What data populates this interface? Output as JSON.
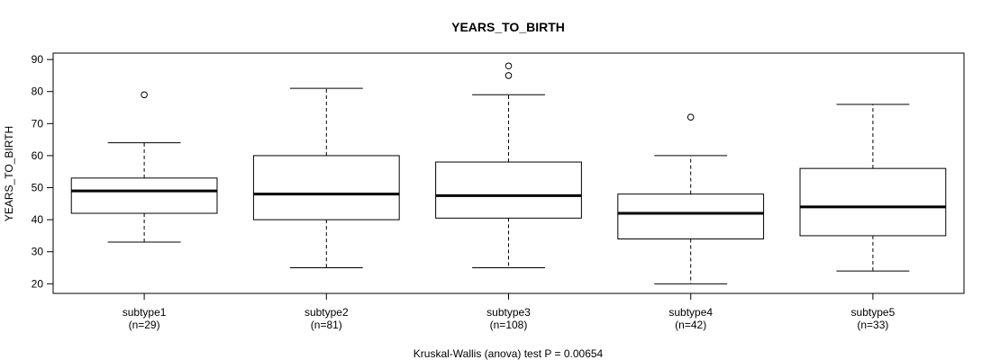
{
  "chart_data": {
    "type": "box",
    "title": "YEARS_TO_BIRTH",
    "ylabel": "YEARS_TO_BIRTH",
    "xlabel": "",
    "footnote": "Kruskal-Wallis (anova) test P = 0.00654",
    "ylim": [
      17,
      92
    ],
    "yticks": [
      20,
      30,
      40,
      50,
      60,
      70,
      80,
      90
    ],
    "grid": false,
    "categories": [
      "subtype1",
      "subtype2",
      "subtype3",
      "subtype4",
      "subtype5"
    ],
    "counts": [
      "(n=29)",
      "(n=81)",
      "(n=108)",
      "(n=42)",
      "(n=33)"
    ],
    "boxes": [
      {
        "whisker_low": 33,
        "q1": 42,
        "median": 49,
        "q3": 53,
        "whisker_high": 64,
        "outliers": [
          79
        ]
      },
      {
        "whisker_low": 25,
        "q1": 40,
        "median": 48,
        "q3": 60,
        "whisker_high": 81,
        "outliers": []
      },
      {
        "whisker_low": 25,
        "q1": 40.5,
        "median": 47.5,
        "q3": 58,
        "whisker_high": 79,
        "outliers": [
          85,
          88
        ]
      },
      {
        "whisker_low": 20,
        "q1": 34,
        "median": 42,
        "q3": 48,
        "whisker_high": 60,
        "outliers": [
          72
        ]
      },
      {
        "whisker_low": 24,
        "q1": 35,
        "median": 44,
        "q3": 56,
        "whisker_high": 76,
        "outliers": []
      }
    ]
  }
}
